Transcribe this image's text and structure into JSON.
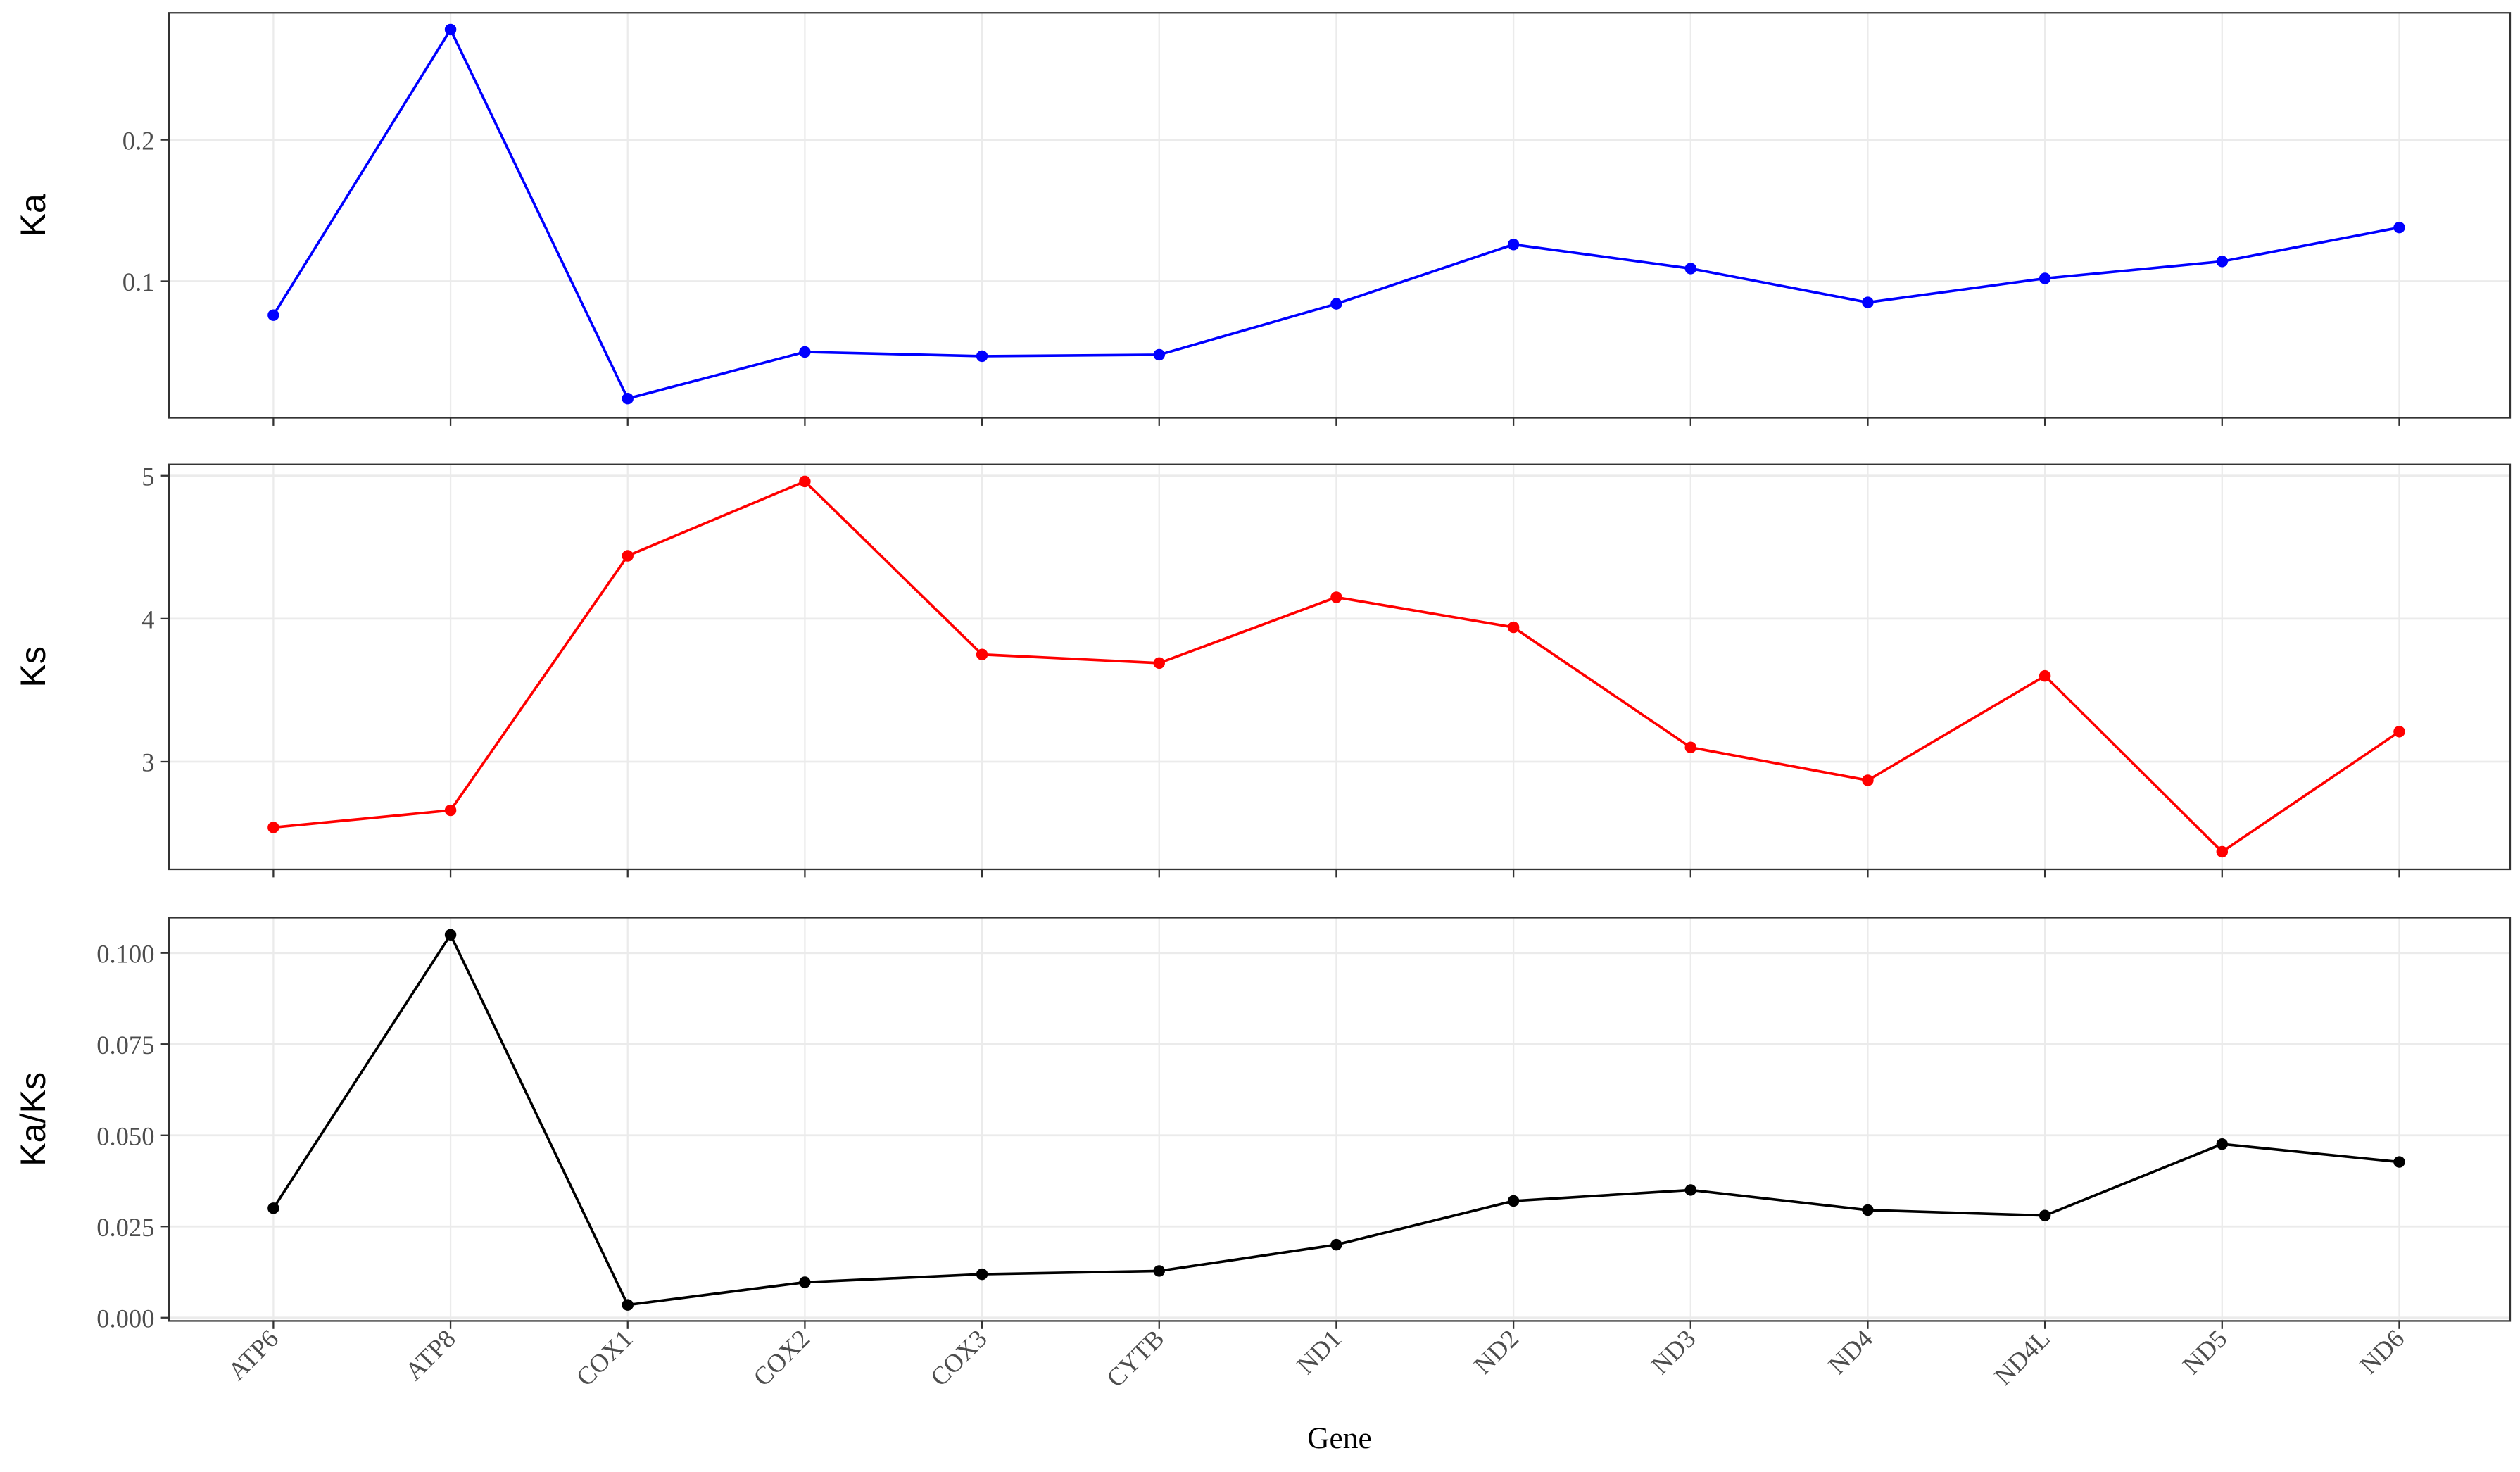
{
  "chart_data": [
    {
      "type": "line",
      "y_label": "Ka",
      "color": "#0000ff",
      "grid": true,
      "values": [
        0.076,
        0.278,
        0.017,
        0.05,
        0.047,
        0.048,
        0.084,
        0.126,
        0.109,
        0.085,
        0.102,
        0.114,
        0.138
      ],
      "ylim": [
        0.0034,
        0.2898
      ],
      "yticks": [
        0.1,
        0.2
      ]
    },
    {
      "type": "line",
      "y_label": "Ks",
      "color": "#ff0000",
      "grid": true,
      "values": [
        2.54,
        2.66,
        4.44,
        4.96,
        3.75,
        3.69,
        4.15,
        3.94,
        3.1,
        2.87,
        3.6,
        2.37,
        3.21
      ],
      "ylim": [
        2.247,
        5.079
      ],
      "yticks": [
        3,
        4,
        5
      ]
    },
    {
      "type": "line",
      "y_label": "Ka/Ks",
      "x_label": "Gene",
      "color": "#000000",
      "grid": true,
      "categories": [
        "ATP6",
        "ATP8",
        "COX1",
        "COX2",
        "COX3",
        "CYTB",
        "ND1",
        "ND2",
        "ND3",
        "ND4",
        "ND4L",
        "ND5",
        "ND6"
      ],
      "values": [
        0.03,
        0.105,
        0.0035,
        0.0097,
        0.0119,
        0.0128,
        0.02,
        0.032,
        0.035,
        0.0295,
        0.028,
        0.0476,
        0.0427
      ],
      "ylim": [
        -0.0009,
        0.1097
      ],
      "yticks": [
        {
          "value": 0,
          "label": "0.000"
        },
        {
          "value": 0.025,
          "label": "0.025"
        },
        {
          "value": 0.05,
          "label": "0.050"
        },
        {
          "value": 0.075,
          "label": "0.075"
        },
        {
          "value": 0.1,
          "label": "0.100"
        }
      ]
    }
  ]
}
